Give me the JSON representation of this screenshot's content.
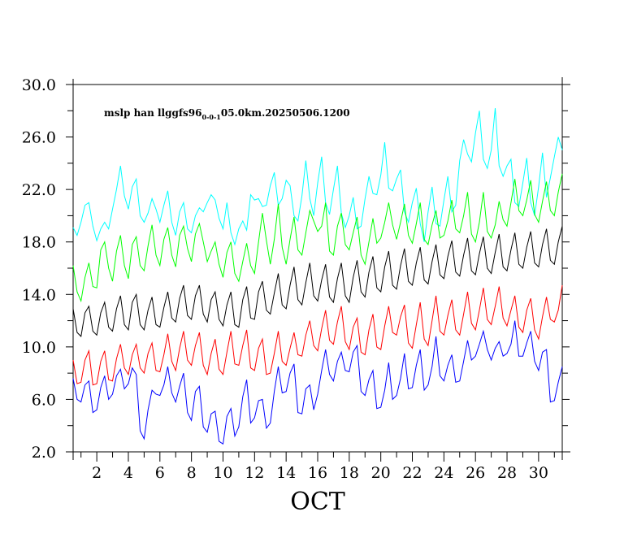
{
  "chart_data": {
    "type": "line",
    "title": {
      "prefix": "mslp han llggfs96",
      "subscript": "0-0-1",
      "suffix": "05.0km.20250506.1200"
    },
    "xlabel": "OCT",
    "ylabel": "",
    "xlim": [
      0.5,
      31.5
    ],
    "ylim": [
      2.0,
      30.0
    ],
    "x_ticks": [
      2,
      4,
      6,
      8,
      10,
      12,
      14,
      16,
      18,
      20,
      22,
      24,
      26,
      28,
      30
    ],
    "y_ticks": [
      "2.0",
      "6.0",
      "10.0",
      "14.0",
      "18.0",
      "22.0",
      "26.0",
      "30.0"
    ],
    "grid": false,
    "x": [
      0.5,
      0.75,
      1.0,
      1.25,
      1.5,
      1.75,
      2.0,
      2.25,
      2.5,
      2.75,
      3.0,
      3.25,
      3.5,
      3.75,
      4.0,
      4.25,
      4.5,
      4.75,
      5.0,
      5.25,
      5.5,
      5.75,
      6.0,
      6.25,
      6.5,
      6.75,
      7.0,
      7.25,
      7.5,
      7.75,
      8.0,
      8.25,
      8.5,
      8.75,
      9.0,
      9.25,
      9.5,
      9.75,
      10.0,
      10.25,
      10.5,
      10.75,
      11.0,
      11.25,
      11.5,
      11.75,
      12.0,
      12.25,
      12.5,
      12.75,
      13.0,
      13.25,
      13.5,
      13.75,
      14.0,
      14.25,
      14.5,
      14.75,
      15.0,
      15.25,
      15.5,
      15.75,
      16.0,
      16.25,
      16.5,
      16.75,
      17.0,
      17.25,
      17.5,
      17.75,
      18.0,
      18.25,
      18.5,
      18.75,
      19.0,
      19.25,
      19.5,
      19.75,
      20.0,
      20.25,
      20.5,
      20.75,
      21.0,
      21.25,
      21.5,
      21.75,
      22.0,
      22.25,
      22.5,
      22.75,
      23.0,
      23.25,
      23.5,
      23.75,
      24.0,
      24.25,
      24.5,
      24.75,
      25.0,
      25.25,
      25.5,
      25.75,
      26.0,
      26.25,
      26.5,
      26.75,
      27.0,
      27.25,
      27.5,
      27.75,
      28.0,
      28.25,
      28.5,
      28.75,
      29.0,
      29.25,
      29.5,
      29.75,
      30.0,
      30.25,
      30.5,
      30.75,
      31.0,
      31.25,
      31.5
    ],
    "series": [
      {
        "color": "#00ffff",
        "values": [
          19.1,
          18.5,
          19.5,
          20.8,
          21.0,
          19.2,
          18.1,
          19.0,
          19.5,
          19.0,
          20.5,
          22.0,
          23.8,
          21.5,
          20.5,
          22.2,
          22.8,
          20.0,
          19.5,
          20.2,
          21.3,
          20.5,
          19.5,
          20.8,
          21.9,
          19.5,
          18.5,
          20.3,
          21.0,
          19.0,
          18.7,
          20.0,
          20.6,
          20.3,
          21.0,
          21.6,
          21.2,
          19.8,
          19.0,
          21.0,
          18.7,
          17.8,
          19.0,
          19.6,
          18.9,
          21.6,
          21.2,
          21.3,
          20.7,
          20.8,
          22.3,
          23.3,
          20.8,
          21.3,
          22.7,
          22.3,
          20.0,
          19.6,
          21.5,
          24.2,
          21.3,
          20.0,
          22.5,
          24.5,
          21.0,
          20.1,
          22.0,
          23.8,
          20.2,
          19.1,
          20.0,
          21.4,
          19.0,
          19.2,
          21.3,
          23.0,
          21.7,
          21.6,
          23.1,
          25.6,
          22.1,
          21.9,
          22.8,
          23.5,
          20.3,
          19.5,
          21.0,
          22.1,
          19.4,
          18.0,
          20.3,
          22.2,
          19.4,
          19.2,
          21.2,
          23.0,
          20.3,
          20.8,
          24.2,
          25.8,
          24.7,
          24.1,
          26.3,
          28.0,
          24.3,
          23.6,
          25.0,
          28.2,
          23.8,
          23.0,
          23.8,
          24.3,
          21.0,
          20.7,
          22.5,
          24.4,
          21.0,
          20.0,
          22.2,
          24.8,
          21.4,
          22.9,
          24.5,
          26.0,
          25.0
        ]
      },
      {
        "color": "#00ff00",
        "values": [
          16.2,
          14.2,
          13.5,
          15.3,
          16.4,
          14.6,
          14.5,
          17.4,
          18.0,
          16.0,
          15.0,
          17.3,
          18.5,
          16.2,
          15.2,
          17.8,
          18.4,
          16.2,
          15.8,
          17.7,
          19.3,
          17.0,
          16.2,
          18.2,
          19.1,
          17.0,
          16.1,
          18.5,
          19.2,
          17.5,
          16.5,
          18.6,
          19.4,
          18.0,
          16.5,
          17.3,
          18.0,
          16.3,
          15.3,
          17.2,
          18.0,
          15.6,
          15.0,
          16.5,
          17.9,
          16.2,
          15.6,
          18.0,
          20.2,
          18.1,
          16.3,
          18.2,
          20.9,
          17.6,
          16.3,
          18.2,
          19.9,
          17.4,
          17.0,
          18.7,
          20.4,
          19.6,
          18.8,
          19.2,
          21.0,
          17.3,
          17.0,
          19.2,
          20.2,
          17.8,
          17.4,
          18.7,
          19.9,
          17.0,
          16.3,
          18.0,
          19.8,
          17.9,
          18.3,
          19.5,
          21.0,
          19.3,
          18.2,
          19.5,
          20.9,
          18.5,
          17.9,
          19.4,
          21.0,
          18.2,
          17.8,
          19.3,
          20.4,
          18.3,
          18.5,
          19.6,
          21.2,
          19.0,
          18.7,
          20.0,
          21.8,
          18.6,
          18.0,
          19.5,
          21.8,
          18.8,
          18.3,
          19.3,
          21.1,
          19.7,
          19.2,
          21.0,
          22.8,
          20.4,
          20.0,
          21.2,
          22.7,
          20.1,
          19.5,
          21.1,
          22.6,
          20.4,
          20.0,
          21.8,
          23.2
        ]
      },
      {
        "color": "#000000",
        "values": [
          12.9,
          11.1,
          10.8,
          12.6,
          13.1,
          11.2,
          10.9,
          12.6,
          13.4,
          11.5,
          11.2,
          12.9,
          13.9,
          11.7,
          11.3,
          13.4,
          14.0,
          11.7,
          11.3,
          12.8,
          13.8,
          11.7,
          11.5,
          13.0,
          14.2,
          12.2,
          11.9,
          13.7,
          14.7,
          12.4,
          12.1,
          13.9,
          14.7,
          12.5,
          11.9,
          13.6,
          14.2,
          12.1,
          11.6,
          13.2,
          14.2,
          11.7,
          11.5,
          13.6,
          14.6,
          12.2,
          12.1,
          14.2,
          15.0,
          12.8,
          12.5,
          14.1,
          15.6,
          13.2,
          12.9,
          14.7,
          16.1,
          13.6,
          13.2,
          14.9,
          16.4,
          13.9,
          13.5,
          15.1,
          16.3,
          13.8,
          13.4,
          15.2,
          16.4,
          13.9,
          13.4,
          15.3,
          16.6,
          14.2,
          13.8,
          15.7,
          16.9,
          14.5,
          14.2,
          16.1,
          17.3,
          14.7,
          14.4,
          16.2,
          17.5,
          15.0,
          14.7,
          16.4,
          17.6,
          15.1,
          14.8,
          16.5,
          17.8,
          15.5,
          15.2,
          16.9,
          18.1,
          15.7,
          15.4,
          17.0,
          18.3,
          15.8,
          15.5,
          17.1,
          18.4,
          16.0,
          15.6,
          17.2,
          18.6,
          16.1,
          15.8,
          17.4,
          18.7,
          16.3,
          16.0,
          17.6,
          18.8,
          16.4,
          16.1,
          17.8,
          19.0,
          16.6,
          16.3,
          18.0,
          19.2
        ]
      },
      {
        "color": "#ff0000",
        "values": [
          9.0,
          7.2,
          7.3,
          9.0,
          9.7,
          7.1,
          7.2,
          8.9,
          9.7,
          7.5,
          7.4,
          9.1,
          10.2,
          8.4,
          7.9,
          9.4,
          10.2,
          8.4,
          8.0,
          9.5,
          10.3,
          8.2,
          8.1,
          9.4,
          11.0,
          8.9,
          8.2,
          9.9,
          11.2,
          9.0,
          8.6,
          10.1,
          11.1,
          8.6,
          7.9,
          9.5,
          10.6,
          8.3,
          7.9,
          9.6,
          11.2,
          8.7,
          8.6,
          10.1,
          11.3,
          8.4,
          8.2,
          9.9,
          10.6,
          7.9,
          8.0,
          9.5,
          11.2,
          8.9,
          8.6,
          9.9,
          11.1,
          9.4,
          9.3,
          10.9,
          12.0,
          10.1,
          9.7,
          11.4,
          12.8,
          10.5,
          10.2,
          11.9,
          13.1,
          10.4,
          9.8,
          11.5,
          12.2,
          9.6,
          9.4,
          11.3,
          12.5,
          10.0,
          9.8,
          11.6,
          13.1,
          11.1,
          10.9,
          12.3,
          13.2,
          10.3,
          9.9,
          11.7,
          13.4,
          10.6,
          10.1,
          12.0,
          13.9,
          11.2,
          10.9,
          12.4,
          13.6,
          11.3,
          10.9,
          12.5,
          14.2,
          11.8,
          11.3,
          12.8,
          14.5,
          12.1,
          11.7,
          13.1,
          14.6,
          12.2,
          11.6,
          12.8,
          13.9,
          11.5,
          11.1,
          12.8,
          13.7,
          11.3,
          10.6,
          12.3,
          13.8,
          12.1,
          11.9,
          12.8,
          14.7
        ]
      },
      {
        "color": "#0000ff",
        "values": [
          7.6,
          6.0,
          5.8,
          7.1,
          7.4,
          5.0,
          5.2,
          6.9,
          7.8,
          6.0,
          6.4,
          7.8,
          8.3,
          6.8,
          7.2,
          8.4,
          7.9,
          3.6,
          3.0,
          5.2,
          6.7,
          6.4,
          6.3,
          7.1,
          8.5,
          6.5,
          5.8,
          7.0,
          8.0,
          5.0,
          4.4,
          6.6,
          7.0,
          3.9,
          3.5,
          4.9,
          5.1,
          2.8,
          2.6,
          4.7,
          5.3,
          3.2,
          3.9,
          6.2,
          7.5,
          4.2,
          4.6,
          5.9,
          6.0,
          3.8,
          4.2,
          6.6,
          8.5,
          6.5,
          6.6,
          8.0,
          8.7,
          5.0,
          4.9,
          6.8,
          7.1,
          5.2,
          6.4,
          8.2,
          9.8,
          7.9,
          7.4,
          8.9,
          9.6,
          8.2,
          8.1,
          9.6,
          10.1,
          6.6,
          6.3,
          7.5,
          8.2,
          5.3,
          5.4,
          6.7,
          8.8,
          6.0,
          6.3,
          7.6,
          9.5,
          6.8,
          6.9,
          8.6,
          9.8,
          6.7,
          7.1,
          8.5,
          10.8,
          7.8,
          7.4,
          8.6,
          9.4,
          7.3,
          7.4,
          8.9,
          10.5,
          9.0,
          9.3,
          10.2,
          11.2,
          9.8,
          9.0,
          9.9,
          10.4,
          9.3,
          9.5,
          10.2,
          12.0,
          9.3,
          9.3,
          10.3,
          11.2,
          8.9,
          8.2,
          9.6,
          9.8,
          5.8,
          5.9,
          7.3,
          8.5
        ]
      }
    ]
  }
}
